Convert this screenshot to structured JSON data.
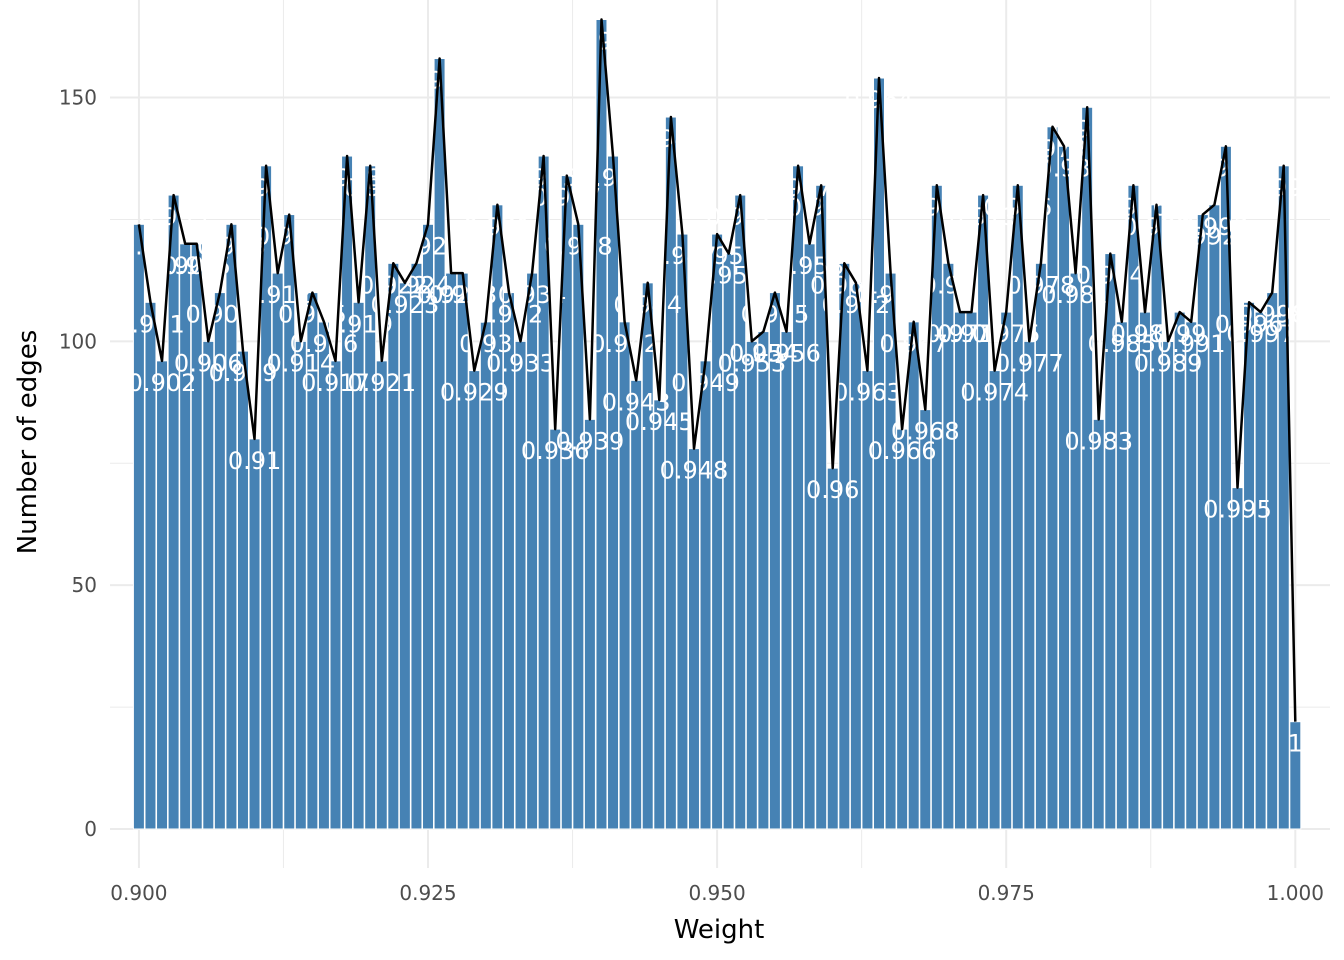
{
  "chart_data": {
    "type": "bar",
    "title": "",
    "xlabel": "Weight",
    "ylabel": "Number of edges",
    "xlim": [
      0.8975,
      1.003
    ],
    "ylim": [
      -8,
      170
    ],
    "x_ticks": [
      {
        "value": 0.9,
        "label": "0.900"
      },
      {
        "value": 0.925,
        "label": "0.925"
      },
      {
        "value": 0.95,
        "label": "0.950"
      },
      {
        "value": 0.975,
        "label": "0.975"
      },
      {
        "value": 1.0,
        "label": "1.000"
      }
    ],
    "y_ticks": [
      {
        "value": 0,
        "label": "0"
      },
      {
        "value": 50,
        "label": "50"
      },
      {
        "value": 100,
        "label": "100"
      },
      {
        "value": 150,
        "label": "150"
      }
    ],
    "grid": true,
    "bar_color": "#4682b4",
    "line_color": "#000000",
    "label_color": "#ffffff",
    "bars": [
      {
        "x": 0.9,
        "value": 124,
        "label": "0.9"
      },
      {
        "x": 0.901,
        "value": 108,
        "label": "0.901"
      },
      {
        "x": 0.902,
        "value": 96,
        "label": "0.902"
      },
      {
        "x": 0.903,
        "value": 130,
        "label": "0.903"
      },
      {
        "x": 0.904,
        "value": 120,
        "label": "0.904"
      },
      {
        "x": 0.905,
        "value": 120,
        "label": "0.905"
      },
      {
        "x": 0.906,
        "value": 100,
        "label": "0.906"
      },
      {
        "x": 0.907,
        "value": 110,
        "label": "0.907"
      },
      {
        "x": 0.908,
        "value": 124,
        "label": "0.908"
      },
      {
        "x": 0.909,
        "value": 98,
        "label": "0.909"
      },
      {
        "x": 0.91,
        "value": 80,
        "label": "0.91"
      },
      {
        "x": 0.911,
        "value": 136,
        "label": "0.911"
      },
      {
        "x": 0.912,
        "value": 114,
        "label": "0.912"
      },
      {
        "x": 0.913,
        "value": 126,
        "label": "0.913"
      },
      {
        "x": 0.914,
        "value": 100,
        "label": "0.914"
      },
      {
        "x": 0.915,
        "value": 110,
        "label": "0.915"
      },
      {
        "x": 0.916,
        "value": 104,
        "label": "0.916"
      },
      {
        "x": 0.917,
        "value": 96,
        "label": "0.917"
      },
      {
        "x": 0.918,
        "value": 138,
        "label": "0.918"
      },
      {
        "x": 0.919,
        "value": 108,
        "label": "0.919"
      },
      {
        "x": 0.92,
        "value": 136,
        "label": "0.92"
      },
      {
        "x": 0.921,
        "value": 96,
        "label": "0.921"
      },
      {
        "x": 0.922,
        "value": 116,
        "label": "0.922"
      },
      {
        "x": 0.923,
        "value": 112,
        "label": "0.923"
      },
      {
        "x": 0.924,
        "value": 116,
        "label": "0.924"
      },
      {
        "x": 0.925,
        "value": 124,
        "label": "0.925"
      },
      {
        "x": 0.926,
        "value": 158,
        "label": "0.926"
      },
      {
        "x": 0.927,
        "value": 114,
        "label": "0.927"
      },
      {
        "x": 0.928,
        "value": 114,
        "label": "0.928"
      },
      {
        "x": 0.929,
        "value": 94,
        "label": "0.929"
      },
      {
        "x": 0.93,
        "value": 104,
        "label": "0.93"
      },
      {
        "x": 0.931,
        "value": 128,
        "label": "0.931"
      },
      {
        "x": 0.932,
        "value": 110,
        "label": "0.932"
      },
      {
        "x": 0.933,
        "value": 100,
        "label": "0.933"
      },
      {
        "x": 0.934,
        "value": 114,
        "label": "0.934"
      },
      {
        "x": 0.935,
        "value": 138,
        "label": "0.935"
      },
      {
        "x": 0.936,
        "value": 82,
        "label": "0.936"
      },
      {
        "x": 0.937,
        "value": 134,
        "label": "0.937"
      },
      {
        "x": 0.938,
        "value": 124,
        "label": "0.938"
      },
      {
        "x": 0.939,
        "value": 84,
        "label": "0.939"
      },
      {
        "x": 0.94,
        "value": 166,
        "label": "0.94"
      },
      {
        "x": 0.941,
        "value": 138,
        "label": "0.941"
      },
      {
        "x": 0.942,
        "value": 104,
        "label": "0.942"
      },
      {
        "x": 0.943,
        "value": 92,
        "label": "0.943"
      },
      {
        "x": 0.944,
        "value": 112,
        "label": "0.944"
      },
      {
        "x": 0.945,
        "value": 88,
        "label": "0.945"
      },
      {
        "x": 0.946,
        "value": 146,
        "label": "0.946"
      },
      {
        "x": 0.947,
        "value": 122,
        "label": "0.947"
      },
      {
        "x": 0.948,
        "value": 78,
        "label": "0.948"
      },
      {
        "x": 0.949,
        "value": 96,
        "label": "0.949"
      },
      {
        "x": 0.95,
        "value": 122,
        "label": "0.95"
      },
      {
        "x": 0.951,
        "value": 118,
        "label": "0.951"
      },
      {
        "x": 0.952,
        "value": 130,
        "label": "0.952"
      },
      {
        "x": 0.953,
        "value": 100,
        "label": "0.953"
      },
      {
        "x": 0.954,
        "value": 102,
        "label": "0.954"
      },
      {
        "x": 0.955,
        "value": 110,
        "label": "0.955"
      },
      {
        "x": 0.956,
        "value": 102,
        "label": "0.956"
      },
      {
        "x": 0.957,
        "value": 136,
        "label": "0.957"
      },
      {
        "x": 0.958,
        "value": 120,
        "label": "0.958"
      },
      {
        "x": 0.959,
        "value": 132,
        "label": "0.959"
      },
      {
        "x": 0.96,
        "value": 74,
        "label": "0.96"
      },
      {
        "x": 0.961,
        "value": 116,
        "label": "0.961"
      },
      {
        "x": 0.962,
        "value": 112,
        "label": "0.962"
      },
      {
        "x": 0.963,
        "value": 94,
        "label": "0.963"
      },
      {
        "x": 0.964,
        "value": 154,
        "label": "0.964"
      },
      {
        "x": 0.965,
        "value": 114,
        "label": "0.965"
      },
      {
        "x": 0.966,
        "value": 82,
        "label": "0.966"
      },
      {
        "x": 0.967,
        "value": 104,
        "label": "0.967"
      },
      {
        "x": 0.968,
        "value": 86,
        "label": "0.968"
      },
      {
        "x": 0.969,
        "value": 132,
        "label": "0.969"
      },
      {
        "x": 0.97,
        "value": 116,
        "label": "0.97"
      },
      {
        "x": 0.971,
        "value": 106,
        "label": "0.971"
      },
      {
        "x": 0.972,
        "value": 106,
        "label": "0.972"
      },
      {
        "x": 0.973,
        "value": 130,
        "label": "0.973"
      },
      {
        "x": 0.974,
        "value": 94,
        "label": "0.974"
      },
      {
        "x": 0.975,
        "value": 106,
        "label": "0.975"
      },
      {
        "x": 0.976,
        "value": 132,
        "label": "0.976"
      },
      {
        "x": 0.977,
        "value": 100,
        "label": "0.977"
      },
      {
        "x": 0.978,
        "value": 116,
        "label": "0.978"
      },
      {
        "x": 0.979,
        "value": 144,
        "label": "0.979"
      },
      {
        "x": 0.98,
        "value": 140,
        "label": "0.98"
      },
      {
        "x": 0.981,
        "value": 114,
        "label": "0.981"
      },
      {
        "x": 0.982,
        "value": 148,
        "label": "0.982"
      },
      {
        "x": 0.983,
        "value": 84,
        "label": "0.983"
      },
      {
        "x": 0.984,
        "value": 118,
        "label": "0.984"
      },
      {
        "x": 0.985,
        "value": 104,
        "label": "0.985"
      },
      {
        "x": 0.986,
        "value": 132,
        "label": "0.986"
      },
      {
        "x": 0.987,
        "value": 106,
        "label": "0.987"
      },
      {
        "x": 0.988,
        "value": 128,
        "label": "0.988"
      },
      {
        "x": 0.989,
        "value": 100,
        "label": "0.989"
      },
      {
        "x": 0.99,
        "value": 106,
        "label": "0.99"
      },
      {
        "x": 0.991,
        "value": 104,
        "label": "0.991"
      },
      {
        "x": 0.992,
        "value": 126,
        "label": "0.992"
      },
      {
        "x": 0.993,
        "value": 128,
        "label": "0.993"
      },
      {
        "x": 0.994,
        "value": 140,
        "label": "0.994"
      },
      {
        "x": 0.995,
        "value": 70,
        "label": "0.995"
      },
      {
        "x": 0.996,
        "value": 108,
        "label": "0.996"
      },
      {
        "x": 0.997,
        "value": 106,
        "label": "0.997"
      },
      {
        "x": 0.998,
        "value": 110,
        "label": "0.998"
      },
      {
        "x": 0.999,
        "value": 136,
        "label": "0.999"
      },
      {
        "x": 1.0,
        "value": 22,
        "label": "1"
      }
    ]
  }
}
